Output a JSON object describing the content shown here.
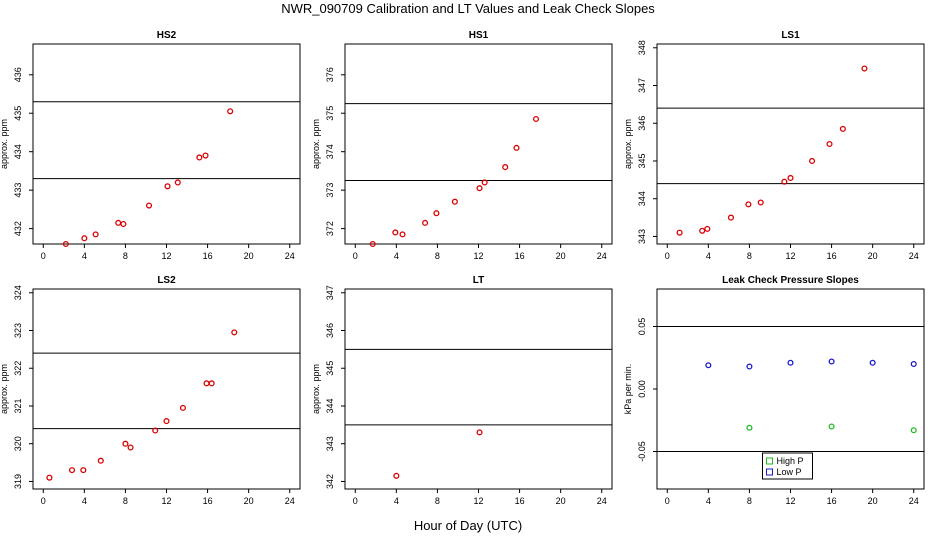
{
  "figure": {
    "title": "NWR_090709  Calibration and LT Values and Leak Check Slopes",
    "xlabel": "Hour of Day (UTC)"
  },
  "chart_data": [
    {
      "type": "scatter",
      "title": "HS2",
      "ylabel": "approx. ppm",
      "xlim": [
        -1,
        25
      ],
      "xticks": [
        0,
        4,
        8,
        12,
        16,
        20,
        24
      ],
      "ylim": [
        431.6,
        436.8
      ],
      "yticks": [
        432,
        433,
        434,
        435,
        436
      ],
      "hlines": [
        433.3,
        435.3
      ],
      "color": "#dd0000",
      "points": [
        [
          2.2,
          431.6
        ],
        [
          4.0,
          431.75
        ],
        [
          5.1,
          431.85
        ],
        [
          7.3,
          432.15
        ],
        [
          7.8,
          432.12
        ],
        [
          10.3,
          432.6
        ],
        [
          12.1,
          433.1
        ],
        [
          13.1,
          433.2
        ],
        [
          15.2,
          433.85
        ],
        [
          15.8,
          433.9
        ],
        [
          18.2,
          435.05
        ]
      ]
    },
    {
      "type": "scatter",
      "title": "HS1",
      "ylabel": "approx. ppm",
      "xlim": [
        -1,
        25
      ],
      "xticks": [
        0,
        4,
        8,
        12,
        16,
        20,
        24
      ],
      "ylim": [
        371.6,
        376.8
      ],
      "yticks": [
        372,
        373,
        374,
        375,
        376
      ],
      "hlines": [
        373.25,
        375.25
      ],
      "color": "#dd0000",
      "points": [
        [
          1.7,
          371.6
        ],
        [
          3.9,
          371.9
        ],
        [
          4.6,
          371.85
        ],
        [
          6.8,
          372.15
        ],
        [
          7.9,
          372.4
        ],
        [
          9.7,
          372.7
        ],
        [
          12.1,
          373.05
        ],
        [
          12.6,
          373.2
        ],
        [
          14.6,
          373.6
        ],
        [
          15.7,
          374.1
        ],
        [
          17.6,
          374.85
        ]
      ]
    },
    {
      "type": "scatter",
      "title": "LS1",
      "ylabel": "approx. ppm",
      "xlim": [
        -1,
        25
      ],
      "xticks": [
        0,
        4,
        8,
        12,
        16,
        20,
        24
      ],
      "ylim": [
        342.8,
        348.1
      ],
      "yticks": [
        343,
        344,
        345,
        346,
        347,
        348
      ],
      "hlines": [
        344.4,
        346.4
      ],
      "color": "#dd0000",
      "points": [
        [
          1.2,
          343.1
        ],
        [
          3.4,
          343.15
        ],
        [
          3.9,
          343.2
        ],
        [
          6.2,
          343.5
        ],
        [
          7.9,
          343.85
        ],
        [
          9.1,
          343.9
        ],
        [
          11.4,
          344.45
        ],
        [
          12.0,
          344.55
        ],
        [
          14.1,
          345.0
        ],
        [
          15.8,
          345.45
        ],
        [
          17.1,
          345.85
        ],
        [
          19.2,
          347.45
        ]
      ]
    },
    {
      "type": "scatter",
      "title": "LS2",
      "ylabel": "approx. ppm",
      "xlim": [
        -1,
        25
      ],
      "xticks": [
        0,
        4,
        8,
        12,
        16,
        20,
        24
      ],
      "ylim": [
        318.8,
        324.1
      ],
      "yticks": [
        319,
        320,
        321,
        322,
        323,
        324
      ],
      "hlines": [
        320.4,
        322.4
      ],
      "color": "#dd0000",
      "points": [
        [
          0.6,
          319.1
        ],
        [
          2.8,
          319.3
        ],
        [
          3.9,
          319.3
        ],
        [
          5.6,
          319.55
        ],
        [
          8.0,
          320.0
        ],
        [
          8.5,
          319.9
        ],
        [
          10.9,
          320.35
        ],
        [
          12.0,
          320.6
        ],
        [
          13.6,
          320.95
        ],
        [
          15.9,
          321.6
        ],
        [
          16.4,
          321.6
        ],
        [
          18.6,
          322.95
        ]
      ]
    },
    {
      "type": "scatter",
      "title": "LT",
      "ylabel": "approx. ppm",
      "xlim": [
        -1,
        25
      ],
      "xticks": [
        0,
        4,
        8,
        12,
        16,
        20,
        24
      ],
      "ylim": [
        341.8,
        347.1
      ],
      "yticks": [
        342,
        343,
        344,
        345,
        346,
        347
      ],
      "hlines": [
        343.5,
        345.5
      ],
      "color": "#dd0000",
      "points": [
        [
          4.0,
          342.15
        ],
        [
          12.1,
          343.3
        ]
      ]
    },
    {
      "type": "scatter",
      "title": "Leak Check Pressure Slopes",
      "ylabel": "kPa per min.",
      "xlim": [
        -1,
        25
      ],
      "xticks": [
        0,
        4,
        8,
        12,
        16,
        20,
        24
      ],
      "ylim": [
        -0.08,
        0.08
      ],
      "yticks": [
        -0.05,
        0.0,
        0.05
      ],
      "ytick_labels": [
        "-0.05",
        "0.00",
        "0.05"
      ],
      "hlines": [
        -0.05,
        0.05
      ],
      "legend": "bottom-center",
      "series": [
        {
          "name": "High P",
          "color": "#22bb22",
          "points": [
            [
              8,
              -0.031
            ],
            [
              16,
              -0.03
            ],
            [
              24,
              -0.033
            ]
          ]
        },
        {
          "name": "Low P",
          "color": "#1a1acc",
          "points": [
            [
              4,
              0.019
            ],
            [
              8,
              0.018
            ],
            [
              12,
              0.021
            ],
            [
              16,
              0.022
            ],
            [
              20,
              0.021
            ],
            [
              24,
              0.02
            ]
          ]
        }
      ]
    }
  ]
}
